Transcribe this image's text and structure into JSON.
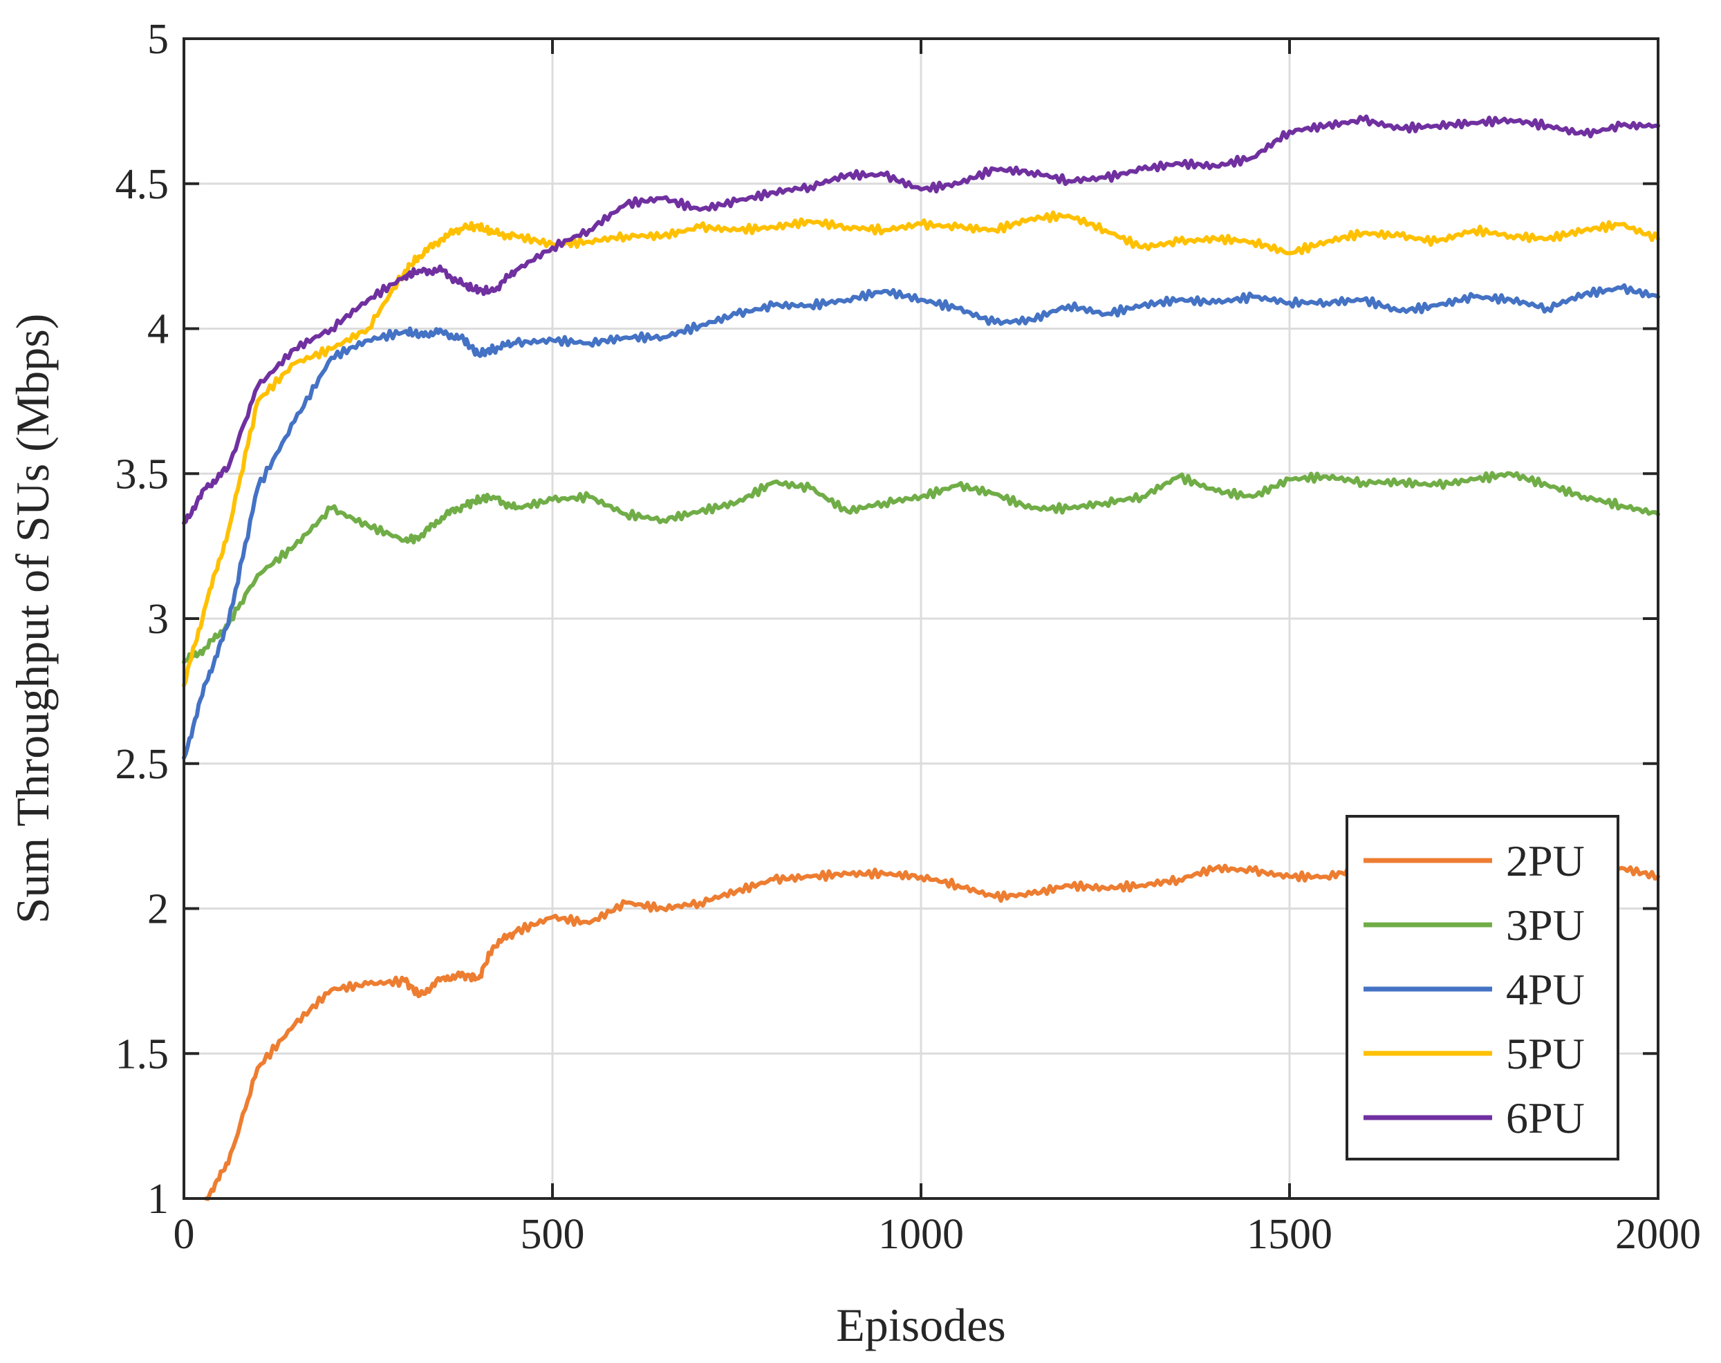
{
  "chart_data": {
    "type": "line",
    "title": "",
    "xlabel": "Episodes",
    "ylabel": "Sum Throughput of SUs (Mbps)",
    "xlim": [
      0,
      2000
    ],
    "ylim": [
      1,
      5
    ],
    "xticks": [
      0,
      500,
      1000,
      1500,
      2000
    ],
    "xtick_labels": [
      "0",
      "500",
      "1000",
      "1500",
      "2000"
    ],
    "yticks": [
      1,
      1.5,
      2,
      2.5,
      3,
      3.5,
      4,
      4.5,
      5
    ],
    "ytick_labels": [
      "1",
      "1.5",
      "2",
      "2.5",
      "3",
      "3.5",
      "4",
      "4.5",
      "5"
    ],
    "grid": true,
    "legend_position": "bottom-right",
    "x": [
      0,
      30,
      60,
      100,
      150,
      200,
      250,
      300,
      320,
      350,
      380,
      400,
      420,
      450,
      500,
      550,
      600,
      650,
      700,
      750,
      800,
      850,
      900,
      950,
      1000,
      1050,
      1100,
      1150,
      1200,
      1250,
      1300,
      1350,
      1400,
      1450,
      1500,
      1550,
      1600,
      1650,
      1700,
      1750,
      1800,
      1850,
      1900,
      1950,
      2000
    ],
    "series": [
      {
        "name": "2PU",
        "color": "#ED7D31",
        "values": [
          null,
          1.0,
          1.12,
          1.45,
          1.6,
          1.72,
          1.74,
          1.75,
          1.7,
          1.76,
          1.77,
          1.76,
          1.87,
          1.92,
          1.97,
          1.95,
          2.02,
          2.0,
          2.02,
          2.06,
          2.1,
          2.11,
          2.12,
          2.12,
          2.11,
          2.08,
          2.04,
          2.05,
          2.08,
          2.07,
          2.08,
          2.1,
          2.14,
          2.13,
          2.11,
          2.11,
          2.14,
          2.16,
          2.15,
          2.14,
          2.12,
          2.12,
          2.13,
          2.14,
          2.11
        ]
      },
      {
        "name": "3PU",
        "color": "#70AD47",
        "values": [
          2.85,
          2.9,
          2.98,
          3.15,
          3.25,
          3.38,
          3.32,
          3.27,
          3.28,
          3.35,
          3.39,
          3.41,
          3.42,
          3.38,
          3.41,
          3.42,
          3.36,
          3.34,
          3.37,
          3.4,
          3.47,
          3.45,
          3.37,
          3.4,
          3.42,
          3.46,
          3.43,
          3.38,
          3.38,
          3.4,
          3.42,
          3.49,
          3.44,
          3.42,
          3.48,
          3.49,
          3.47,
          3.47,
          3.46,
          3.48,
          3.5,
          3.46,
          3.42,
          3.39,
          3.36
        ]
      },
      {
        "name": "4PU",
        "color": "#4472C4",
        "values": [
          2.52,
          2.78,
          2.98,
          3.45,
          3.68,
          3.9,
          3.96,
          3.99,
          3.98,
          3.99,
          3.96,
          3.91,
          3.93,
          3.95,
          3.96,
          3.95,
          3.97,
          3.97,
          4.01,
          4.05,
          4.08,
          4.08,
          4.1,
          4.13,
          4.1,
          4.07,
          4.02,
          4.03,
          4.08,
          4.05,
          4.08,
          4.1,
          4.09,
          4.11,
          4.09,
          4.09,
          4.1,
          4.06,
          4.08,
          4.11,
          4.1,
          4.07,
          4.12,
          4.14,
          4.11
        ]
      },
      {
        "name": "5PU",
        "color": "#FFC000",
        "values": [
          2.77,
          3.05,
          3.3,
          3.75,
          3.88,
          3.93,
          4.0,
          4.2,
          4.25,
          4.31,
          4.35,
          4.35,
          4.33,
          4.32,
          4.29,
          4.3,
          4.32,
          4.32,
          4.35,
          4.34,
          4.35,
          4.37,
          4.35,
          4.34,
          4.36,
          4.35,
          4.34,
          4.38,
          4.39,
          4.34,
          4.28,
          4.3,
          4.31,
          4.3,
          4.26,
          4.3,
          4.33,
          4.32,
          4.3,
          4.34,
          4.32,
          4.31,
          4.34,
          4.36,
          4.31
        ]
      },
      {
        "name": "6PU",
        "color": "#7030A0",
        "values": [
          3.33,
          3.45,
          3.52,
          3.8,
          3.93,
          4.0,
          4.1,
          4.18,
          4.2,
          4.2,
          4.15,
          4.13,
          4.13,
          4.2,
          4.28,
          4.34,
          4.43,
          4.45,
          4.41,
          4.44,
          4.47,
          4.49,
          4.53,
          4.53,
          4.48,
          4.5,
          4.55,
          4.54,
          4.51,
          4.52,
          4.55,
          4.57,
          4.56,
          4.59,
          4.68,
          4.7,
          4.72,
          4.69,
          4.7,
          4.71,
          4.72,
          4.7,
          4.67,
          4.7,
          4.7
        ]
      }
    ]
  }
}
